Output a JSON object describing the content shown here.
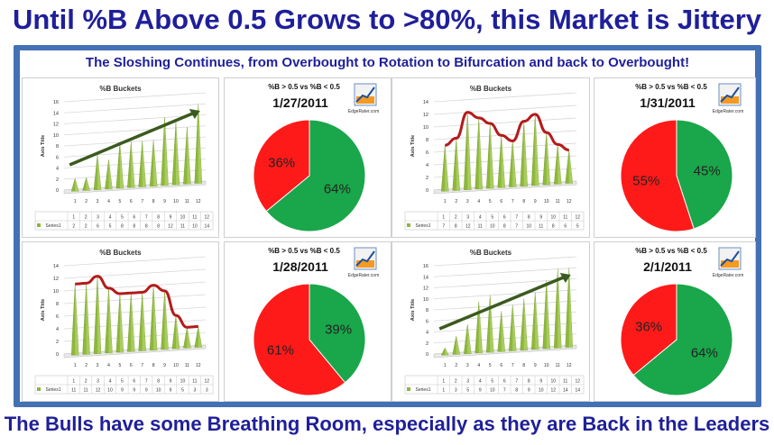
{
  "title": "Until %B Above 0.5 Grows to >80%, this Market is Jittery",
  "subtitle": "The Sloshing Continues, from Overbought to Rotation to Bifurcation and back to Overbought!",
  "footer": "The Bulls have some Breathing Room, especially as they are Back in the Leaders",
  "colors": {
    "red": "#ff1a1a",
    "green": "#1aa64a",
    "cone": "#8db83a",
    "trend_red": "#b31b1b",
    "trend_green": "#3b5a1f",
    "title": "#1f1f9a",
    "frame": "#4470b4"
  },
  "chart_data": [
    {
      "type": "bar",
      "title": "%B Buckets",
      "ylabel": "Axis Title",
      "ylim": [
        0,
        16
      ],
      "yticks": [
        0,
        2,
        4,
        6,
        8,
        10,
        12,
        14,
        16
      ],
      "categories": [
        "1",
        "2",
        "3",
        "4",
        "5",
        "6",
        "7",
        "8",
        "9",
        "10",
        "11",
        "12"
      ],
      "series": [
        {
          "name": "Series1",
          "values": [
            2,
            2,
            6,
            5,
            8,
            8,
            8,
            8,
            12,
            11,
            10,
            14
          ]
        }
      ],
      "trend": "up"
    },
    {
      "type": "pie",
      "title": "%B > 0.5 vs %B < 0.5",
      "date": "1/27/2011",
      "brand": "EdgeRater.com",
      "slices": [
        {
          "label": "64%",
          "value": 64,
          "color": "#1aa64a"
        },
        {
          "label": "36%",
          "value": 36,
          "color": "#ff1a1a"
        }
      ]
    },
    {
      "type": "bar",
      "title": "%B Buckets",
      "ylabel": "Axis Title",
      "ylim": [
        0,
        14
      ],
      "yticks": [
        0,
        2,
        4,
        6,
        8,
        10,
        12,
        14
      ],
      "categories": [
        "1",
        "2",
        "3",
        "4",
        "5",
        "6",
        "7",
        "8",
        "9",
        "10",
        "11",
        "12"
      ],
      "series": [
        {
          "name": "Series1",
          "values": [
            7,
            8,
            12,
            11,
            10,
            8,
            7,
            10,
            11,
            8,
            6,
            5
          ]
        }
      ],
      "trend": "wave"
    },
    {
      "type": "pie",
      "title": "%B > 0.5 vs %B < 0.5",
      "date": "1/31/2011",
      "brand": "EdgeRater.com",
      "slices": [
        {
          "label": "45%",
          "value": 45,
          "color": "#1aa64a"
        },
        {
          "label": "55%",
          "value": 55,
          "color": "#ff1a1a"
        }
      ]
    },
    {
      "type": "bar",
      "title": "%B Buckets",
      "ylabel": "Axis Title",
      "ylim": [
        0,
        14
      ],
      "yticks": [
        0,
        2,
        4,
        6,
        8,
        10,
        12,
        14
      ],
      "categories": [
        "1",
        "2",
        "3",
        "4",
        "5",
        "6",
        "7",
        "8",
        "9",
        "10",
        "11",
        "12"
      ],
      "series": [
        {
          "name": "Series1",
          "values": [
            11,
            11,
            12,
            10,
            9,
            9,
            9,
            10,
            9,
            5,
            3,
            3
          ]
        }
      ],
      "trend": "wave"
    },
    {
      "type": "pie",
      "title": "%B > 0.5 vs %B < 0.5",
      "date": "1/28/2011",
      "brand": "EdgeRater.com",
      "slices": [
        {
          "label": "39%",
          "value": 39,
          "color": "#1aa64a"
        },
        {
          "label": "61%",
          "value": 61,
          "color": "#ff1a1a"
        }
      ]
    },
    {
      "type": "bar",
      "title": "%B Buckets",
      "ylabel": "Axis Title",
      "ylim": [
        0,
        16
      ],
      "yticks": [
        0,
        2,
        4,
        6,
        8,
        10,
        12,
        14,
        16
      ],
      "categories": [
        "1",
        "2",
        "3",
        "4",
        "5",
        "6",
        "7",
        "8",
        "9",
        "10",
        "11",
        "12"
      ],
      "series": [
        {
          "name": "Series1",
          "values": [
            1,
            3,
            5,
            9,
            10,
            7,
            8,
            9,
            10,
            12,
            14,
            14
          ]
        }
      ],
      "trend": "up"
    },
    {
      "type": "pie",
      "title": "%B > 0.5 vs %B < 0.5",
      "date": "2/1/2011",
      "brand": "EdgeRater.com",
      "slices": [
        {
          "label": "64%",
          "value": 64,
          "color": "#1aa64a"
        },
        {
          "label": "36%",
          "value": 36,
          "color": "#ff1a1a"
        }
      ]
    }
  ]
}
